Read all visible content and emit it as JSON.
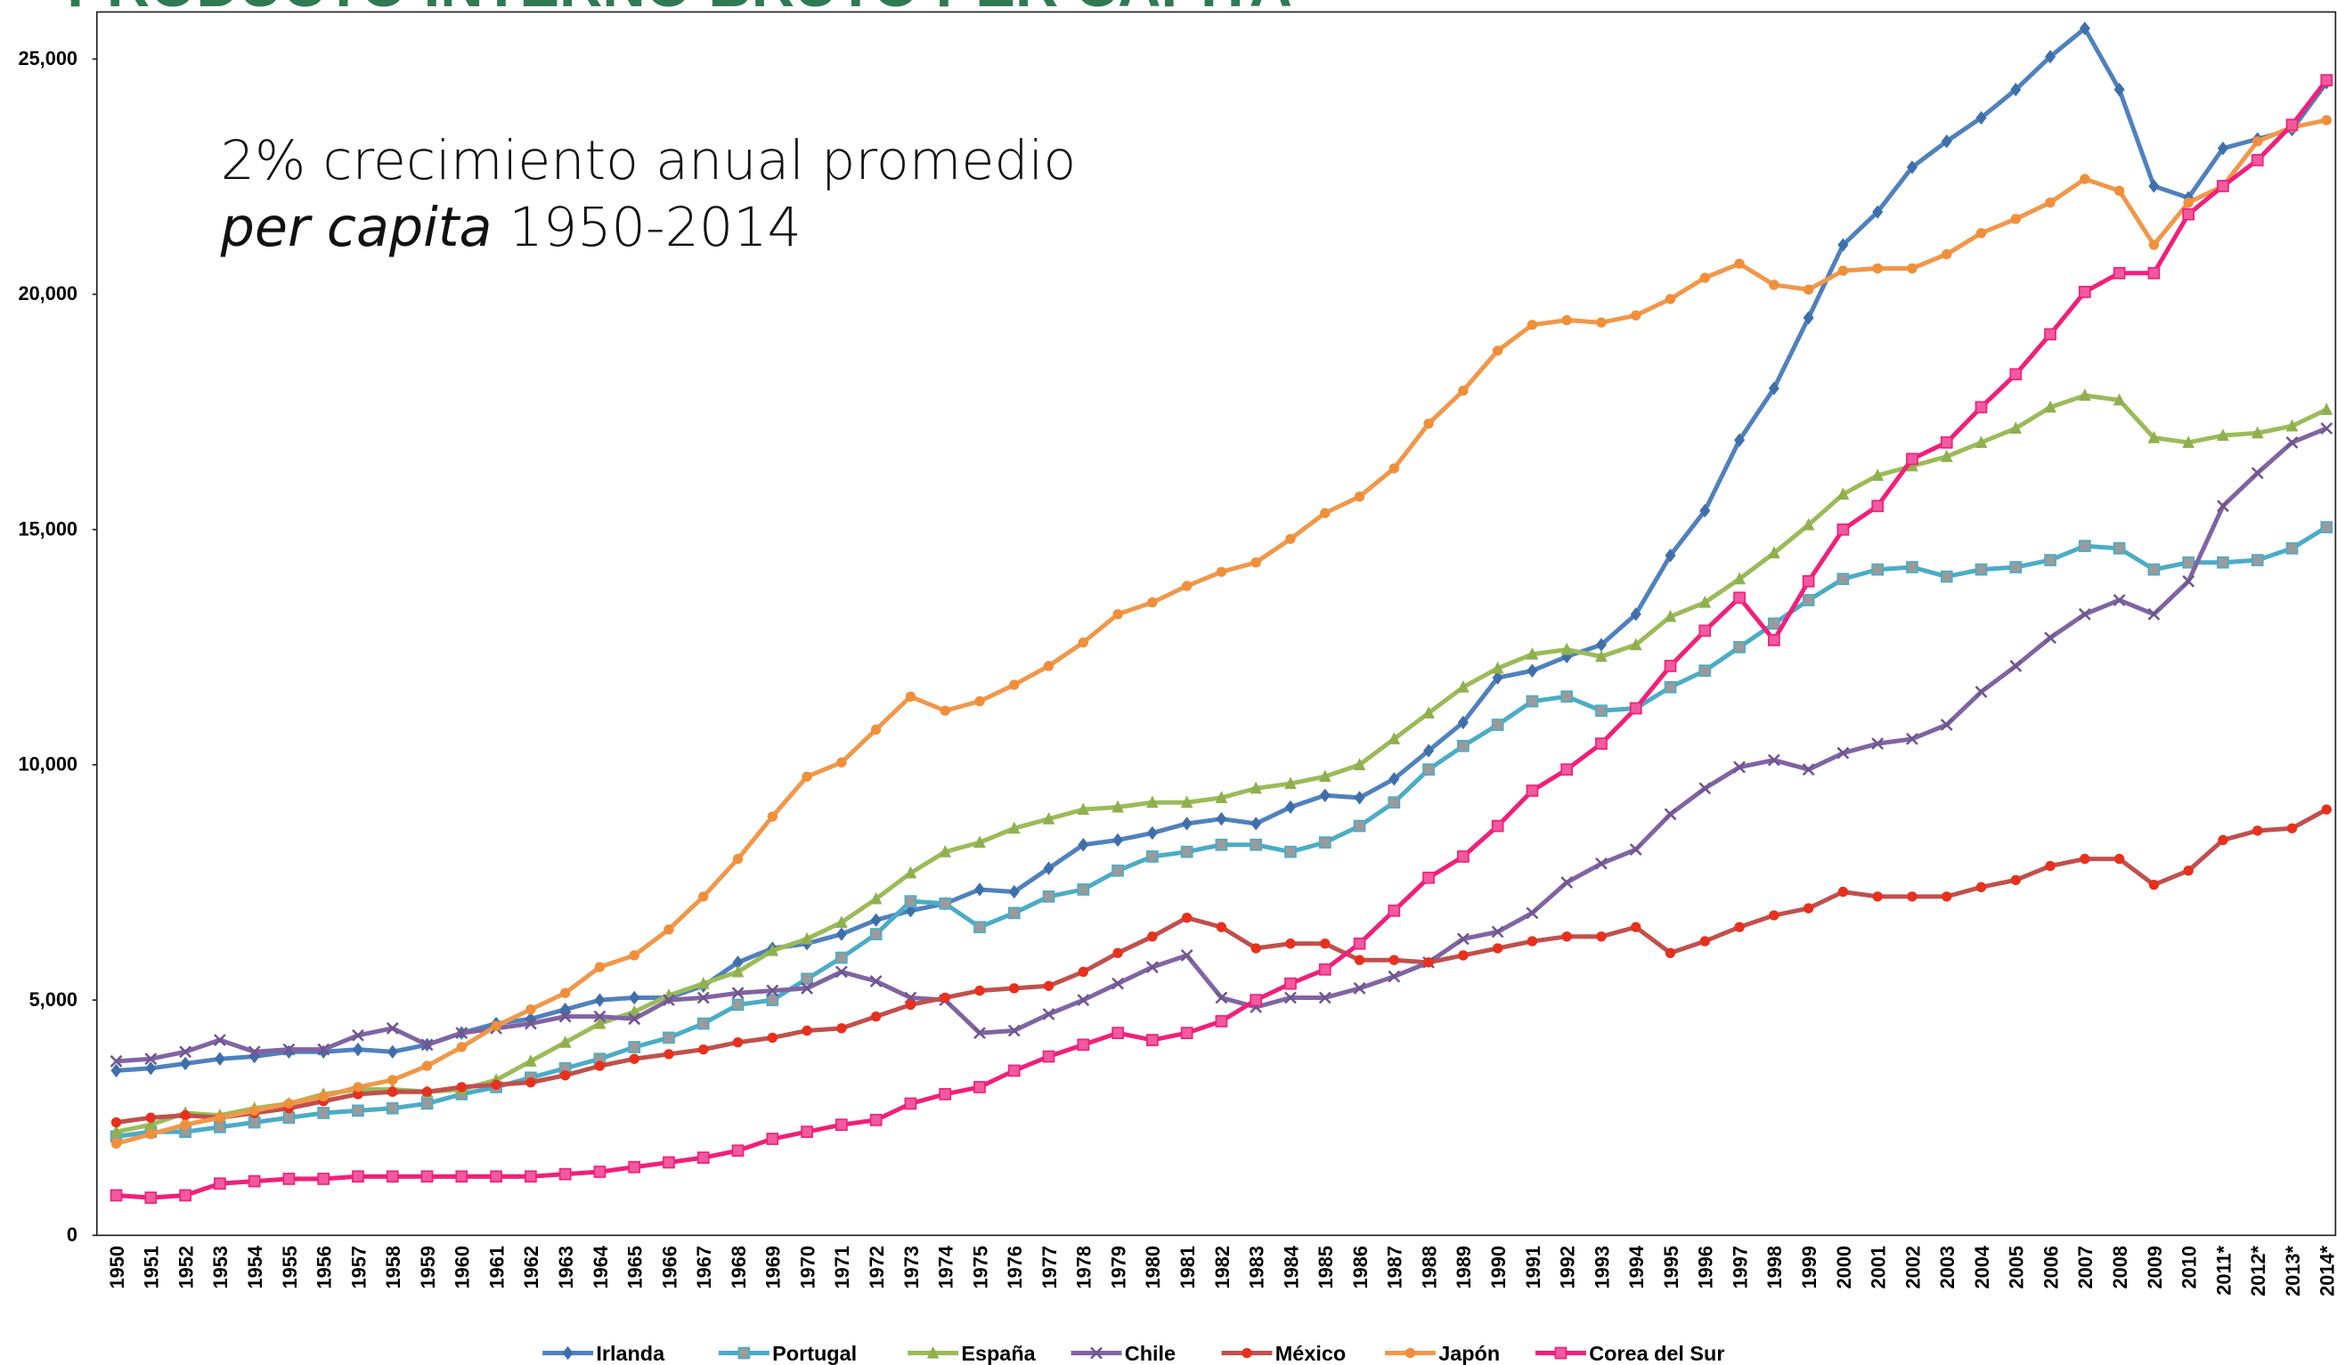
{
  "chart_data": {
    "type": "line",
    "title": "PRODUCTO INTERNO BRUTO PER CAPITA",
    "annotation": {
      "line1": "2% crecimiento anual promedio",
      "line2_italic": "per capita",
      "line2_rest": "1950-2014"
    },
    "categories": [
      "1950",
      "1951",
      "1952",
      "1953",
      "1954",
      "1955",
      "1956",
      "1957",
      "1958",
      "1959",
      "1960",
      "1961",
      "1962",
      "1963",
      "1964",
      "1965",
      "1966",
      "1967",
      "1968",
      "1969",
      "1970",
      "1971",
      "1972",
      "1973",
      "1974",
      "1975",
      "1976",
      "1977",
      "1978",
      "1979",
      "1980",
      "1981",
      "1982",
      "1983",
      "1984",
      "1985",
      "1986",
      "1987",
      "1988",
      "1989",
      "1990",
      "1991",
      "1992",
      "1993",
      "1994",
      "1995",
      "1996",
      "1997",
      "1998",
      "1999",
      "2000",
      "2001",
      "2002",
      "2003",
      "2004",
      "2005",
      "2006",
      "2007",
      "2008",
      "2009",
      "2010",
      "2011*",
      "2012*",
      "2013*",
      "2014*"
    ],
    "ylim": [
      0,
      26000
    ],
    "yticks": [
      0,
      {
        "value": 5000,
        "label": "5,000"
      },
      {
        "value": 10000,
        "label": "10,000"
      },
      {
        "value": 15000,
        "label": "15,000"
      },
      {
        "value": 20000,
        "label": "20,000"
      },
      {
        "value": 25000,
        "label": "25,000"
      }
    ],
    "grid": false,
    "legend": "bottom",
    "series": [
      {
        "name": "Irlanda",
        "color": "#4f81bd",
        "marker": "diamond",
        "marker_color": "#3f6fab",
        "values": [
          3500,
          3550,
          3650,
          3750,
          3800,
          3900,
          3900,
          3950,
          3900,
          4050,
          4300,
          4500,
          4600,
          4800,
          5000,
          5050,
          5050,
          5300,
          5800,
          6100,
          6200,
          6400,
          6700,
          6900,
          7050,
          7350,
          7300,
          7800,
          8300,
          8400,
          8550,
          8750,
          8850,
          8750,
          9100,
          9350,
          9300,
          9700,
          10300,
          10900,
          11850,
          12000,
          12300,
          12550,
          13200,
          14450,
          15400,
          16900,
          18000,
          19500,
          21050,
          21750,
          22700,
          23250,
          23750,
          24350,
          25050,
          25650,
          24350,
          22300,
          22050,
          23100,
          23300,
          23500,
          24500
        ]
      },
      {
        "name": "Portugal",
        "color": "#4bacc6",
        "marker": "square",
        "marker_color": "#9a9a9a",
        "values": [
          2100,
          2200,
          2200,
          2300,
          2400,
          2500,
          2600,
          2650,
          2700,
          2800,
          3000,
          3150,
          3350,
          3550,
          3750,
          4000,
          4200,
          4500,
          4900,
          5000,
          5450,
          5900,
          6400,
          7100,
          7050,
          6550,
          6850,
          7200,
          7350,
          7750,
          8050,
          8150,
          8300,
          8300,
          8150,
          8350,
          8700,
          9200,
          9900,
          10400,
          10850,
          11350,
          11450,
          11150,
          11200,
          11650,
          12000,
          12500,
          13000,
          13500,
          13950,
          14150,
          14200,
          14000,
          14150,
          14200,
          14350,
          14650,
          14600,
          14150,
          14300,
          14300,
          14350,
          14600,
          15050
        ]
      },
      {
        "name": "España",
        "color": "#9bbb59",
        "marker": "triangle",
        "marker_color": "#8fb04e",
        "values": [
          2200,
          2350,
          2600,
          2550,
          2700,
          2800,
          3000,
          3100,
          3100,
          3050,
          3100,
          3300,
          3700,
          4100,
          4500,
          4750,
          5100,
          5350,
          5600,
          6050,
          6300,
          6650,
          7150,
          7700,
          8150,
          8350,
          8650,
          8850,
          9050,
          9100,
          9200,
          9200,
          9300,
          9500,
          9600,
          9750,
          10000,
          10550,
          11100,
          11650,
          12050,
          12350,
          12450,
          12300,
          12550,
          13150,
          13450,
          13950,
          14500,
          15100,
          15750,
          16150,
          16350,
          16550,
          16850,
          17150,
          17600,
          17850,
          17750,
          16950,
          16850,
          17000,
          17050,
          17200,
          17550
        ]
      },
      {
        "name": "Chile",
        "color": "#8064a2",
        "marker": "x",
        "marker_color": "#6f5590",
        "values": [
          3700,
          3750,
          3900,
          4150,
          3900,
          3950,
          3950,
          4250,
          4400,
          4050,
          4300,
          4400,
          4500,
          4650,
          4650,
          4600,
          5000,
          5050,
          5150,
          5200,
          5250,
          5600,
          5400,
          5050,
          5000,
          4300,
          4350,
          4700,
          5000,
          5350,
          5700,
          5950,
          5050,
          4850,
          5050,
          5050,
          5250,
          5500,
          5800,
          6300,
          6450,
          6850,
          7500,
          7900,
          8200,
          8950,
          9500,
          9950,
          10100,
          9900,
          10250,
          10450,
          10550,
          10850,
          11550,
          12100,
          12700,
          13200,
          13500,
          13200,
          13900,
          15500,
          16200,
          16850,
          17150
        ]
      },
      {
        "name": "México",
        "color": "#c0504d",
        "marker": "circle",
        "marker_color": "#e8301c",
        "values": [
          2400,
          2500,
          2550,
          2500,
          2600,
          2700,
          2850,
          3000,
          3050,
          3050,
          3150,
          3200,
          3250,
          3400,
          3600,
          3750,
          3850,
          3950,
          4100,
          4200,
          4350,
          4400,
          4650,
          4900,
          5050,
          5200,
          5250,
          5300,
          5600,
          6000,
          6350,
          6750,
          6550,
          6100,
          6200,
          6200,
          5850,
          5850,
          5800,
          5950,
          6100,
          6250,
          6350,
          6350,
          6550,
          6000,
          6250,
          6550,
          6800,
          6950,
          7300,
          7200,
          7200,
          7200,
          7400,
          7550,
          7850,
          8000,
          8000,
          7450,
          7750,
          8400,
          8600,
          8650,
          9050
        ]
      },
      {
        "name": "Japón",
        "color": "#f0984a",
        "marker": "circle",
        "marker_color": "#f08f3a",
        "values": [
          1950,
          2150,
          2350,
          2500,
          2650,
          2800,
          2950,
          3150,
          3300,
          3600,
          4000,
          4450,
          4800,
          5150,
          5700,
          5950,
          6500,
          7200,
          8000,
          8900,
          9750,
          10050,
          10750,
          11450,
          11150,
          11350,
          11700,
          12100,
          12600,
          13200,
          13450,
          13800,
          14100,
          14300,
          14800,
          15350,
          15700,
          16300,
          17250,
          17950,
          18800,
          19350,
          19450,
          19400,
          19550,
          19900,
          20350,
          20650,
          20200,
          20100,
          20500,
          20550,
          20550,
          20850,
          21300,
          21600,
          21950,
          22450,
          22200,
          21050,
          21950,
          22300,
          23250,
          23550,
          23700
        ]
      },
      {
        "name": "Corea del Sur",
        "color": "#f0207a",
        "marker": "square",
        "marker_color": "#f25aa0",
        "values": [
          850,
          800,
          850,
          1100,
          1150,
          1200,
          1200,
          1250,
          1250,
          1250,
          1250,
          1250,
          1250,
          1300,
          1350,
          1450,
          1550,
          1650,
          1800,
          2050,
          2200,
          2350,
          2450,
          2800,
          3000,
          3150,
          3500,
          3800,
          4050,
          4300,
          4150,
          4300,
          4550,
          5000,
          5350,
          5650,
          6200,
          6900,
          7600,
          8050,
          8700,
          9450,
          9900,
          10450,
          11200,
          12100,
          12850,
          13550,
          12650,
          13900,
          15000,
          15500,
          16500,
          16850,
          17600,
          18300,
          19150,
          20050,
          20450,
          20450,
          21700,
          22300,
          22850,
          23600,
          24550
        ]
      }
    ]
  }
}
